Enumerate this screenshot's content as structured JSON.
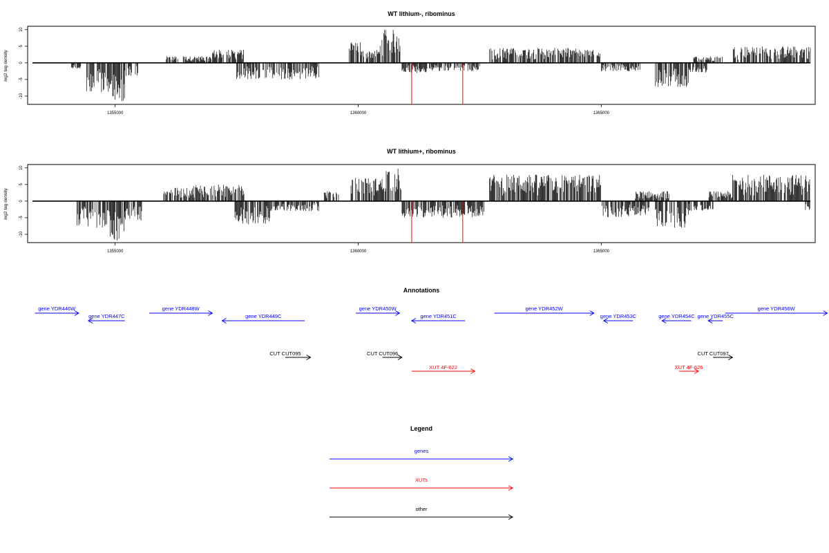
{
  "chart_data": [
    {
      "type": "bar",
      "title": "WT lithium-, ribominus",
      "xlabel": "",
      "ylabel": "log2 tag density",
      "xlim": [
        1353200,
        1369400
      ],
      "ylim": [
        -12.5,
        11
      ],
      "xticks": [
        "1355000",
        "1360000",
        "1365000"
      ],
      "xtick_values": [
        1355000,
        1360000,
        1365000
      ],
      "yticks": [
        "10",
        "5",
        "0",
        "-5",
        "-10"
      ],
      "ytick_values": [
        10,
        5,
        0,
        -5,
        -10
      ],
      "plus_strand_regions": [
        {
          "start": 1356050,
          "end": 1356300,
          "peak": 2
        },
        {
          "start": 1356400,
          "end": 1357000,
          "peak": 2
        },
        {
          "start": 1357000,
          "end": 1357650,
          "peak": 4
        },
        {
          "start": 1359800,
          "end": 1360050,
          "peak": 7
        },
        {
          "start": 1360050,
          "end": 1360450,
          "peak": 4
        },
        {
          "start": 1360450,
          "end": 1360900,
          "peak": 10
        },
        {
          "start": 1362700,
          "end": 1364500,
          "peak": 4.5
        },
        {
          "start": 1364500,
          "end": 1365000,
          "peak": 4
        },
        {
          "start": 1366900,
          "end": 1367500,
          "peak": 2
        },
        {
          "start": 1367700,
          "end": 1369300,
          "peak": 5
        }
      ],
      "minus_strand_regions": [
        {
          "start": 1354100,
          "end": 1354300,
          "peak": -2
        },
        {
          "start": 1354400,
          "end": 1354950,
          "peak": -9
        },
        {
          "start": 1354950,
          "end": 1355200,
          "peak": -12
        },
        {
          "start": 1355200,
          "end": 1355500,
          "peak": -4
        },
        {
          "start": 1357500,
          "end": 1359200,
          "peak": -5
        },
        {
          "start": 1360900,
          "end": 1361500,
          "peak": -3
        },
        {
          "start": 1361500,
          "end": 1362500,
          "peak": -2.5
        },
        {
          "start": 1365000,
          "end": 1365800,
          "peak": -2.5
        },
        {
          "start": 1366100,
          "end": 1366800,
          "peak": -7.5
        },
        {
          "start": 1366800,
          "end": 1367200,
          "peak": -3
        }
      ],
      "red_markers": [
        1361100,
        1362150
      ],
      "red_marker_value": -12.5
    },
    {
      "type": "bar",
      "title": "WT lithium+, ribominus",
      "xlabel": "",
      "ylabel": "log2 tag density",
      "xlim": [
        1353200,
        1369400
      ],
      "ylim": [
        -12.5,
        11
      ],
      "xticks": [
        "1355000",
        "1360000",
        "1365000"
      ],
      "xtick_values": [
        1355000,
        1360000,
        1365000
      ],
      "yticks": [
        "10",
        "5",
        "0",
        "-5",
        "-10"
      ],
      "ytick_values": [
        10,
        5,
        0,
        -5,
        -10
      ],
      "plus_strand_regions": [
        {
          "start": 1356000,
          "end": 1356600,
          "peak": 4
        },
        {
          "start": 1356600,
          "end": 1357650,
          "peak": 5
        },
        {
          "start": 1359300,
          "end": 1359600,
          "peak": 3
        },
        {
          "start": 1359850,
          "end": 1360550,
          "peak": 7
        },
        {
          "start": 1360550,
          "end": 1360900,
          "peak": 10
        },
        {
          "start": 1362700,
          "end": 1365000,
          "peak": 8
        },
        {
          "start": 1365700,
          "end": 1366400,
          "peak": 3
        },
        {
          "start": 1367200,
          "end": 1367700,
          "peak": 3
        },
        {
          "start": 1367700,
          "end": 1369300,
          "peak": 8
        }
      ],
      "minus_strand_regions": [
        {
          "start": 1354200,
          "end": 1354900,
          "peak": -8
        },
        {
          "start": 1354900,
          "end": 1355200,
          "peak": -12
        },
        {
          "start": 1355200,
          "end": 1355550,
          "peak": -6
        },
        {
          "start": 1357450,
          "end": 1358200,
          "peak": -7
        },
        {
          "start": 1358200,
          "end": 1359200,
          "peak": -3
        },
        {
          "start": 1360900,
          "end": 1362600,
          "peak": -5
        },
        {
          "start": 1365000,
          "end": 1366000,
          "peak": -5
        },
        {
          "start": 1366100,
          "end": 1366800,
          "peak": -8
        },
        {
          "start": 1366800,
          "end": 1367300,
          "peak": -3
        },
        {
          "start": 1369200,
          "end": 1369300,
          "peak": -3
        }
      ],
      "red_markers": [
        1361100,
        1362150
      ],
      "red_marker_value": -12.5
    }
  ],
  "annotations": {
    "title": "Annotations",
    "genes": [
      {
        "label": "gene YDR446W",
        "start": 1353350,
        "end": 1354250,
        "strand": "+",
        "row": 0
      },
      {
        "label": "gene YDR447C",
        "start": 1354450,
        "end": 1355200,
        "strand": "-",
        "row": 1
      },
      {
        "label": "gene YDR448W",
        "start": 1355700,
        "end": 1357000,
        "strand": "+",
        "row": 0
      },
      {
        "label": "gene YDR449C",
        "start": 1357200,
        "end": 1358900,
        "strand": "-",
        "row": 1
      },
      {
        "label": "gene YDR450W",
        "start": 1359950,
        "end": 1360850,
        "strand": "+",
        "row": 0
      },
      {
        "label": "gene YDR451C",
        "start": 1361100,
        "end": 1362200,
        "strand": "-",
        "row": 1
      },
      {
        "label": "gene YDR452W",
        "start": 1362800,
        "end": 1364850,
        "strand": "+",
        "row": 0
      },
      {
        "label": "gene YDR453C",
        "start": 1365050,
        "end": 1365650,
        "strand": "-",
        "row": 1
      },
      {
        "label": "gene YDR454C",
        "start": 1366250,
        "end": 1366850,
        "strand": "-",
        "row": 1
      },
      {
        "label": "gene YDR455C",
        "start": 1367200,
        "end": 1367500,
        "strand": "-",
        "row": 1
      },
      {
        "label": "gene YDR456W",
        "start": 1367550,
        "end": 1369650,
        "strand": "+",
        "row": 0
      }
    ],
    "cuts": [
      {
        "label": "CUT CUT095",
        "start": 1358500,
        "end": 1359020,
        "strand": "+"
      },
      {
        "label": "CUT CUT096",
        "start": 1360500,
        "end": 1360900,
        "strand": "+"
      },
      {
        "label": "CUT CUT097",
        "start": 1367300,
        "end": 1367700,
        "strand": "+"
      }
    ],
    "xuts": [
      {
        "label": "XUT 4F-622",
        "start": 1361100,
        "end": 1362400,
        "strand": "+"
      },
      {
        "label": "XUT 4F-626",
        "start": 1366600,
        "end": 1367000,
        "strand": "+"
      }
    ]
  },
  "legend": {
    "title": "Legend",
    "items": [
      {
        "label": "genes",
        "color": "#0000ff"
      },
      {
        "label": "XUTs",
        "color": "#ff0000"
      },
      {
        "label": "other",
        "color": "#000000"
      }
    ]
  },
  "colors": {
    "gene": "#0000ff",
    "xut": "#ff0000",
    "other": "#000000",
    "signal": "#000000",
    "marker": "#ff0000"
  }
}
